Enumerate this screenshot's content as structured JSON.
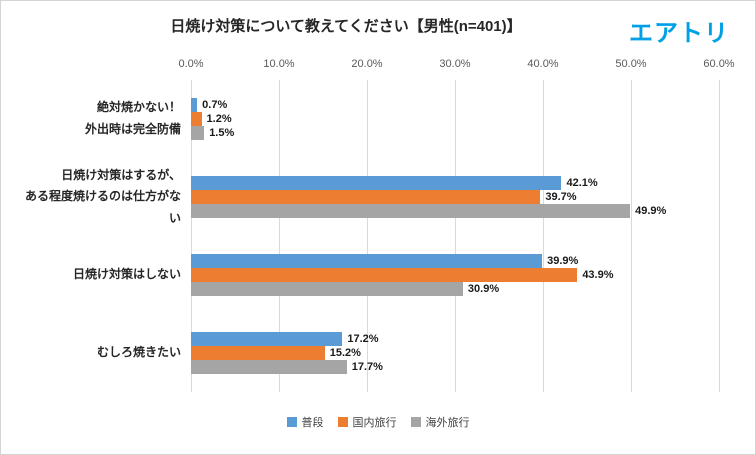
{
  "header": {
    "logo": "エアトリ"
  },
  "chart_data": {
    "type": "bar",
    "orientation": "horizontal",
    "title": "日焼け対策について教えてください【男性(n=401)】",
    "categories": [
      "絶対焼かない！\n外出時は完全防備",
      "日焼け対策はするが、\nある程度焼けるのは仕方がない",
      "日焼け対策はしない",
      "むしろ焼きたい"
    ],
    "series": [
      {
        "name": "普段",
        "color": "#5B9BD5",
        "values": [
          0.7,
          42.1,
          39.9,
          17.2
        ]
      },
      {
        "name": "国内旅行",
        "color": "#ED7D31",
        "values": [
          1.2,
          39.7,
          43.9,
          15.2
        ]
      },
      {
        "name": "海外旅行",
        "color": "#A5A5A5",
        "values": [
          1.5,
          49.9,
          30.9,
          17.7
        ]
      }
    ],
    "xlim": [
      0,
      60
    ],
    "xtick_labels": [
      "0.0%",
      "10.0%",
      "20.0%",
      "30.0%",
      "40.0%",
      "50.0%",
      "60.0%"
    ],
    "value_suffix": "%",
    "grid": true,
    "legend_position": "bottom"
  }
}
